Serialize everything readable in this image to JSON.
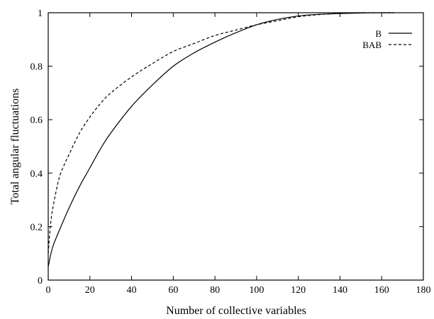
{
  "chart_data": {
    "type": "line",
    "title": "",
    "xlabel": "Number of collective variables",
    "ylabel": "Total angular fluctuations",
    "xlim": [
      0,
      180
    ],
    "ylim": [
      0,
      1
    ],
    "x_ticks": [
      "0",
      "20",
      "40",
      "60",
      "80",
      "100",
      "120",
      "140",
      "160",
      "180"
    ],
    "y_ticks": [
      "0",
      "0.2",
      "0.4",
      "0.6",
      "0.8",
      "1"
    ],
    "grid": false,
    "legend_position": "top-right",
    "series": [
      {
        "name": "B",
        "style": "solid",
        "color": "#000000",
        "x": [
          0,
          2,
          5,
          10,
          15,
          20,
          25,
          30,
          40,
          50,
          60,
          70,
          80,
          90,
          100,
          110,
          120,
          130,
          140,
          150,
          160,
          166
        ],
        "y": [
          0.05,
          0.12,
          0.18,
          0.27,
          0.35,
          0.42,
          0.49,
          0.55,
          0.65,
          0.73,
          0.8,
          0.85,
          0.89,
          0.925,
          0.955,
          0.975,
          0.988,
          0.994,
          0.997,
          0.999,
          1.0,
          1.0
        ]
      },
      {
        "name": "BAB",
        "style": "dashed",
        "color": "#000000",
        "x": [
          0,
          1,
          2,
          4,
          6,
          10,
          15,
          20,
          25,
          30,
          40,
          50,
          60,
          70,
          80,
          90,
          100,
          110,
          120,
          130,
          140,
          150,
          166
        ],
        "y": [
          0.1,
          0.2,
          0.26,
          0.34,
          0.4,
          0.47,
          0.55,
          0.61,
          0.66,
          0.7,
          0.76,
          0.81,
          0.855,
          0.885,
          0.915,
          0.935,
          0.955,
          0.97,
          0.985,
          0.993,
          0.998,
          1.0,
          1.0
        ]
      }
    ]
  }
}
